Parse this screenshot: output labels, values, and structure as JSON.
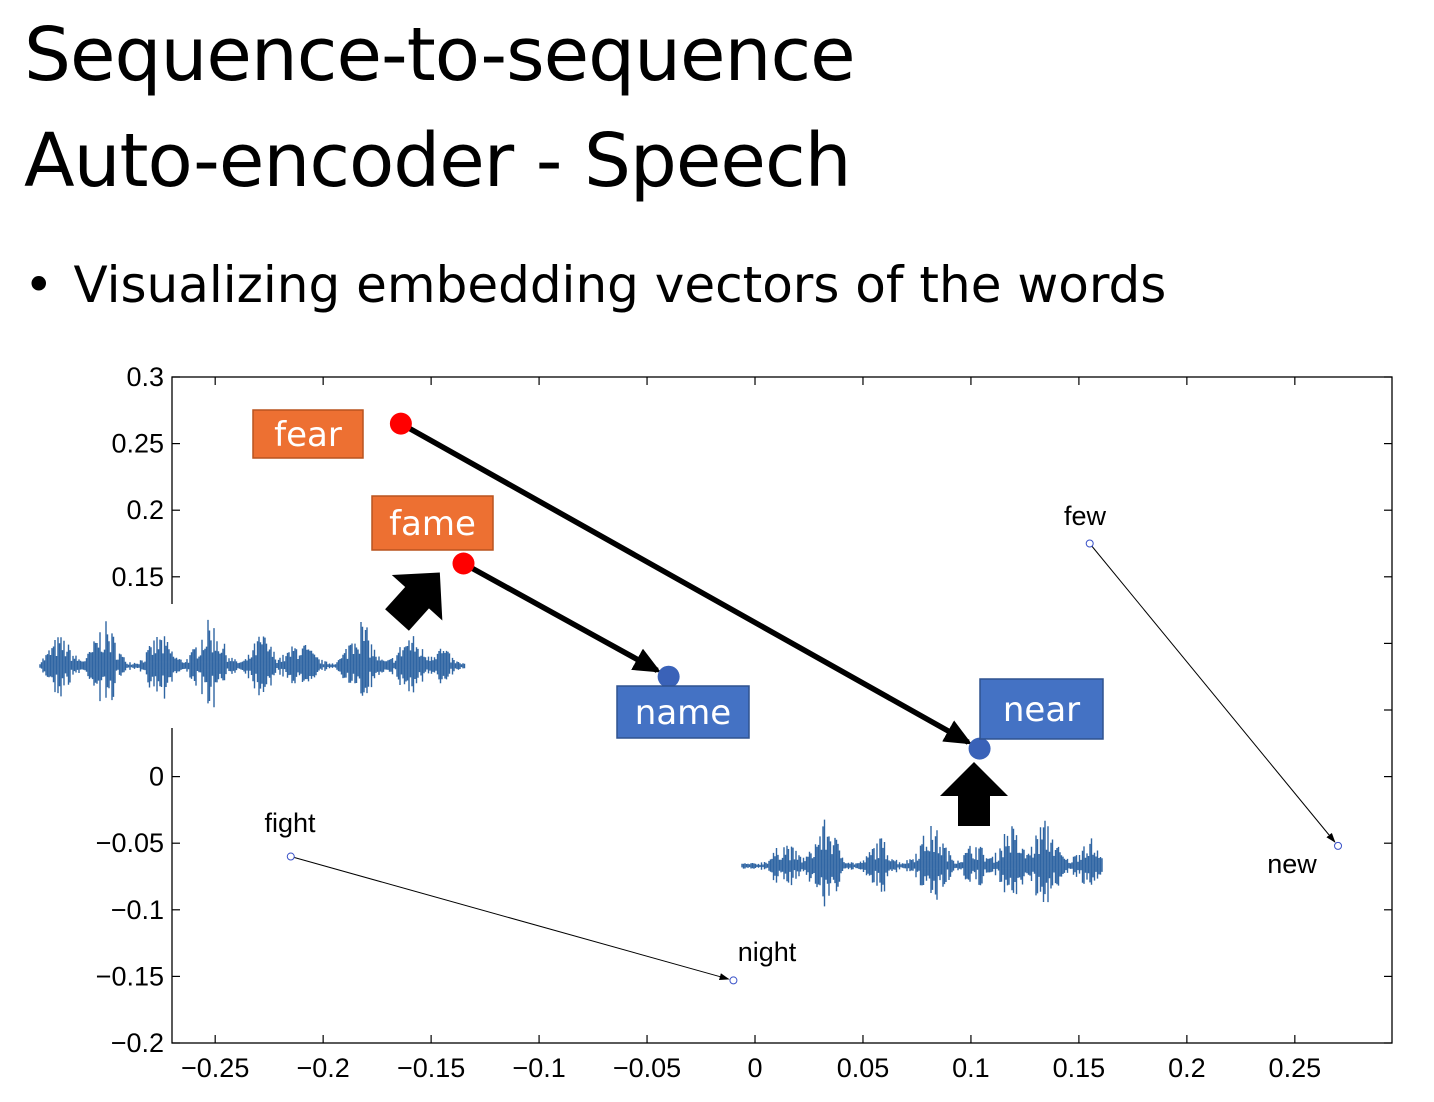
{
  "slide": {
    "title_line1": "Sequence-to-sequence",
    "title_line2": "Auto-encoder - Speech",
    "bullet_marker": "•",
    "bullet": "Visualizing embedding vectors of the words"
  },
  "chart_data": {
    "type": "scatter",
    "title": "",
    "xlabel": "",
    "ylabel": "",
    "xlim": [
      -0.27,
      0.295
    ],
    "ylim": [
      -0.2,
      0.3
    ],
    "xticks": [
      -0.25,
      -0.2,
      -0.15,
      -0.1,
      -0.05,
      0,
      0.05,
      0.1,
      0.15,
      0.2,
      0.25
    ],
    "xtick_labels": [
      "−0.25",
      "−0.2",
      "−0.15",
      "−0.1",
      "−0.05",
      "0",
      "0.05",
      "0.1",
      "0.15",
      "0.2",
      "0.25"
    ],
    "yticks": [
      0.3,
      0.25,
      0.2,
      0.15,
      0.1,
      0.05,
      0,
      -0.05,
      -0.1,
      -0.15,
      -0.2
    ],
    "ytick_labels": [
      "0.3",
      "0.25",
      "0.2",
      "0.15",
      "",
      "",
      "0",
      "−0.05",
      "−0.1",
      "−0.15",
      "−0.2"
    ],
    "grid": false,
    "points": [
      {
        "word": "fear",
        "x": -0.164,
        "y": 0.265,
        "style": "highlight-source"
      },
      {
        "word": "fame",
        "x": -0.135,
        "y": 0.16,
        "style": "highlight-source"
      },
      {
        "word": "name",
        "x": -0.04,
        "y": 0.075,
        "style": "highlight-target"
      },
      {
        "word": "near",
        "x": 0.104,
        "y": 0.021,
        "style": "highlight-target"
      },
      {
        "word": "few",
        "x": 0.155,
        "y": 0.175,
        "style": "plain"
      },
      {
        "word": "new",
        "x": 0.27,
        "y": -0.052,
        "style": "plain"
      },
      {
        "word": "fight",
        "x": -0.215,
        "y": -0.06,
        "style": "plain"
      },
      {
        "word": "night",
        "x": -0.01,
        "y": -0.153,
        "style": "plain"
      }
    ],
    "arrows": [
      {
        "from": "fear",
        "to": "near",
        "style": "bold"
      },
      {
        "from": "fame",
        "to": "name",
        "style": "bold"
      },
      {
        "from": "few",
        "to": "new",
        "style": "thin"
      },
      {
        "from": "fight",
        "to": "night",
        "style": "thin"
      }
    ],
    "colors": {
      "source_point": "#ff0000",
      "target_point": "#3a62b8",
      "source_label_bg": "#ed7032",
      "source_label_border": "#b9531f",
      "target_label_bg": "#4472c4",
      "target_label_border": "#2f528f",
      "waveform": "#2f65a3",
      "plain_point": "#3a52c8"
    }
  }
}
